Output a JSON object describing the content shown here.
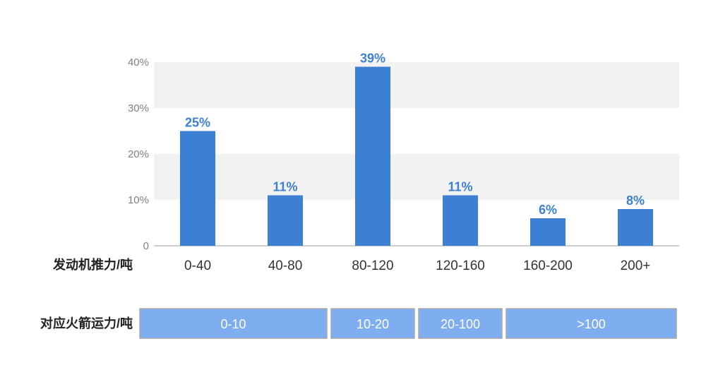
{
  "chart_data": {
    "type": "bar",
    "categories": [
      "0-40",
      "40-80",
      "80-120",
      "120-160",
      "160-200",
      "200+"
    ],
    "values": [
      25,
      11,
      39,
      11,
      6,
      8
    ],
    "data_labels": [
      "25%",
      "11%",
      "39%",
      "11%",
      "6%",
      "8%"
    ],
    "ylim": [
      0,
      40
    ],
    "y_ticks": [
      0,
      10,
      20,
      30,
      40
    ],
    "y_tick_labels": [
      "0",
      "10%",
      "20%",
      "30%",
      "40%"
    ],
    "grid": "alternating horizontal bands",
    "xlabel": "发动机推力/吨",
    "bar_color": "#3d7fd3",
    "label_color": "#3d7fd3",
    "band_color": "#f2f2f2"
  },
  "rocket_row": {
    "label": "对应火箭运力/吨",
    "fill_color": "#7eaef0",
    "border_color": "#a8a8a8",
    "ranges": [
      {
        "label": "0-10",
        "covers": [
          "0-40",
          "40-80"
        ]
      },
      {
        "label": "10-20",
        "covers": [
          "80-120"
        ]
      },
      {
        "label": "20-100",
        "covers": [
          "120-160"
        ]
      },
      {
        "label": ">100",
        "covers": [
          "160-200",
          "200+"
        ]
      }
    ]
  }
}
